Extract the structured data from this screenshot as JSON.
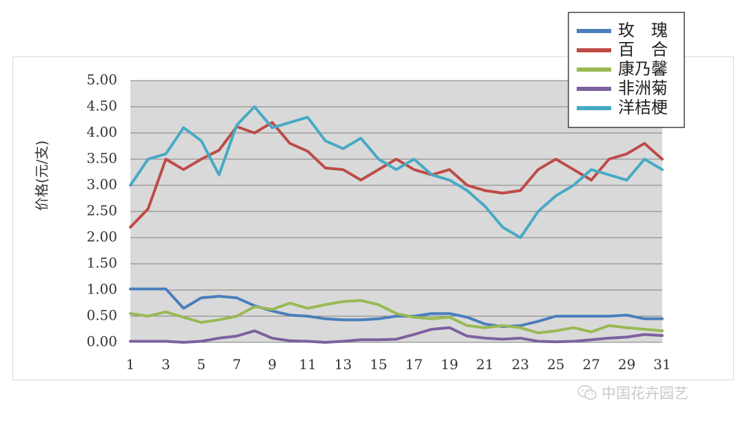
{
  "chart_data": {
    "type": "line",
    "title": "",
    "xlabel": "",
    "ylabel": "价格(元/支)",
    "ylim": [
      0,
      5
    ],
    "yticks": [
      "0.00",
      "0.50",
      "1.00",
      "1.50",
      "2.00",
      "2.50",
      "3.00",
      "3.50",
      "4.00",
      "4.50",
      "5.00"
    ],
    "x": [
      1,
      2,
      3,
      4,
      5,
      6,
      7,
      8,
      9,
      10,
      11,
      12,
      13,
      14,
      15,
      16,
      17,
      18,
      19,
      20,
      21,
      22,
      23,
      24,
      25,
      26,
      27,
      28,
      29,
      30,
      31
    ],
    "xticks": [
      "1",
      "3",
      "5",
      "7",
      "9",
      "11",
      "13",
      "15",
      "17",
      "19",
      "21",
      "23",
      "25",
      "27",
      "29",
      "31"
    ],
    "grid": true,
    "legend_position": "top-right",
    "series": [
      {
        "name": "玫　瑰",
        "color": "#4a7ebb",
        "values": [
          1.02,
          1.02,
          1.02,
          0.65,
          0.85,
          0.88,
          0.85,
          0.7,
          0.6,
          0.52,
          0.5,
          0.45,
          0.43,
          0.43,
          0.45,
          0.5,
          0.5,
          0.55,
          0.55,
          0.48,
          0.35,
          0.3,
          0.32,
          0.4,
          0.5,
          0.5,
          0.5,
          0.5,
          0.52,
          0.45,
          0.45
        ]
      },
      {
        "name": "百　合",
        "color": "#be4b48",
        "values": [
          2.2,
          2.55,
          3.5,
          3.3,
          3.5,
          3.67,
          4.12,
          4.0,
          4.2,
          3.8,
          3.65,
          3.33,
          3.3,
          3.1,
          3.3,
          3.5,
          3.3,
          3.2,
          3.3,
          3.0,
          2.9,
          2.85,
          2.9,
          3.3,
          3.5,
          3.3,
          3.1,
          3.5,
          3.6,
          3.8,
          3.5
        ]
      },
      {
        "name": "康乃馨",
        "color": "#98b954",
        "values": [
          0.55,
          0.5,
          0.58,
          0.48,
          0.38,
          0.43,
          0.5,
          0.68,
          0.63,
          0.75,
          0.65,
          0.72,
          0.78,
          0.8,
          0.72,
          0.55,
          0.48,
          0.45,
          0.48,
          0.32,
          0.28,
          0.32,
          0.28,
          0.18,
          0.22,
          0.28,
          0.2,
          0.32,
          0.28,
          0.25,
          0.22
        ]
      },
      {
        "name": "非洲菊",
        "color": "#7d60a0",
        "values": [
          0.02,
          0.02,
          0.02,
          0.0,
          0.02,
          0.08,
          0.12,
          0.22,
          0.08,
          0.03,
          0.02,
          0.0,
          0.02,
          0.05,
          0.05,
          0.06,
          0.15,
          0.25,
          0.28,
          0.12,
          0.08,
          0.06,
          0.08,
          0.02,
          0.01,
          0.02,
          0.05,
          0.08,
          0.1,
          0.15,
          0.13
        ]
      },
      {
        "name": "洋桔梗",
        "color": "#46aac5",
        "values": [
          3.0,
          3.5,
          3.6,
          4.1,
          3.85,
          3.2,
          4.15,
          4.5,
          4.1,
          4.2,
          4.3,
          3.85,
          3.7,
          3.9,
          3.5,
          3.3,
          3.5,
          3.2,
          3.1,
          2.9,
          2.6,
          2.2,
          2.0,
          2.5,
          2.8,
          3.0,
          3.3,
          3.2,
          3.1,
          3.5,
          3.3
        ]
      }
    ]
  },
  "watermark": {
    "text": "中国花卉园艺",
    "icon": "wechat-icon"
  }
}
